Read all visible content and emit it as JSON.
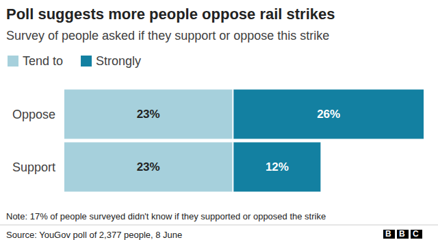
{
  "chart_data": {
    "type": "bar",
    "title": "Poll suggests more people oppose rail strikes",
    "subtitle": "Survey of people asked if they support or oppose this strike",
    "categories": [
      "Oppose",
      "Support"
    ],
    "series": [
      {
        "name": "Tend to",
        "color": "#a6d0dc",
        "values": [
          23,
          23
        ],
        "value_labels": [
          "23%",
          "23%"
        ]
      },
      {
        "name": "Strongly",
        "color": "#1380a1",
        "values": [
          26,
          12
        ],
        "value_labels": [
          "26%",
          "12%"
        ]
      }
    ],
    "orientation": "horizontal",
    "stacked": true,
    "data_labels": true,
    "legend": "top-left",
    "tick_labels": "y",
    "xlim": [
      0,
      49
    ],
    "note": "Note: 17% of people surveyed didn't know if they supported or opposed the strike",
    "source": "Source: YouGov poll of 2,377 people, 8 June",
    "logo": "BBC"
  }
}
